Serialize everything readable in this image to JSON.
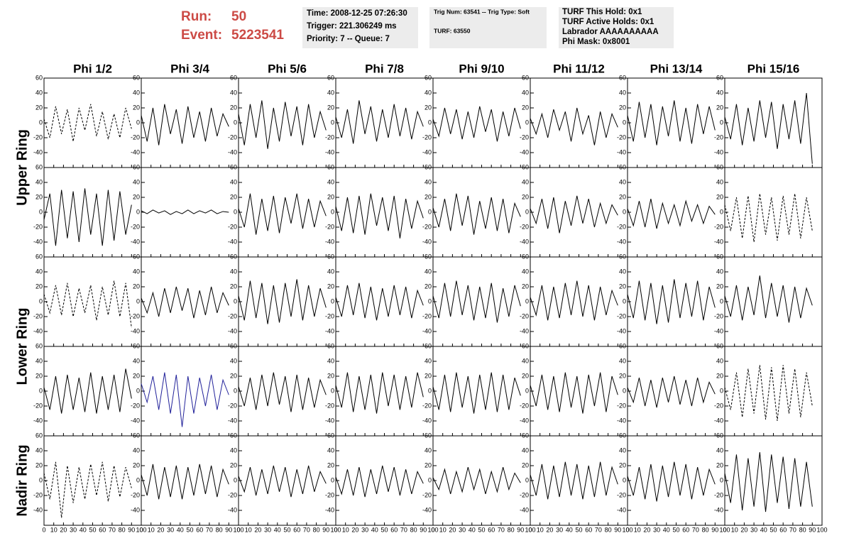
{
  "header": {
    "run_label": "Run:",
    "run": "50",
    "event_label": "Event:",
    "event": "5223541",
    "box1": [
      "Time: 2008-12-25 07:26:30",
      "Trigger: 221.306249 ms",
      "Priority: 7 -- Queue: 7"
    ],
    "box2": [
      "Trig Num: 63541 -- Trig Type: Soft",
      "TURF: 63550"
    ],
    "box3": [
      "TURF This Hold: 0x1",
      "TURF Active Holds: 0x1",
      "Labrador AAAAAAAAAA",
      "Phi Mask: 0x8001"
    ]
  },
  "chart_data": {
    "type": "waveform-grid",
    "columns": [
      "Phi 1/2",
      "Phi 3/4",
      "Phi 5/6",
      "Phi 7/8",
      "Phi 9/10",
      "Phi 11/12",
      "Phi 13/14",
      "Phi 15/16"
    ],
    "row_labels": [
      "Upper Ring",
      null,
      "Lower Ring",
      null,
      "Nadir Ring"
    ],
    "x": [
      0,
      6,
      12,
      18,
      24,
      30,
      36,
      42,
      48,
      54,
      60,
      66,
      72,
      78,
      84,
      90
    ],
    "xlim": [
      0,
      100
    ],
    "xticks": [
      0,
      10,
      20,
      30,
      40,
      50,
      60,
      70,
      80,
      90,
      100
    ],
    "ylim": [
      -60,
      60
    ],
    "yticks": [
      -40,
      -20,
      0,
      20,
      40,
      60
    ],
    "panels": [
      {
        "cells": [
          {
            "color": "#000000",
            "dashed": true,
            "values": [
              5,
              -20,
              22,
              -15,
              18,
              -25,
              20,
              -10,
              25,
              -18,
              15,
              -22,
              12,
              -20,
              20,
              -8
            ]
          },
          {
            "color": "#000000",
            "dashed": false,
            "values": [
              10,
              -25,
              20,
              -30,
              25,
              -15,
              18,
              -28,
              22,
              -20,
              15,
              -25,
              20,
              -18,
              12,
              -5
            ]
          },
          {
            "color": "#000000",
            "dashed": false,
            "values": [
              12,
              -30,
              25,
              -20,
              30,
              -35,
              20,
              -25,
              28,
              -18,
              22,
              -30,
              25,
              -20,
              15,
              -10
            ]
          },
          {
            "color": "#000000",
            "dashed": false,
            "values": [
              8,
              -20,
              18,
              -28,
              30,
              -15,
              22,
              -25,
              18,
              -20,
              25,
              -18,
              20,
              -22,
              15,
              -5
            ]
          },
          {
            "color": "#000000",
            "dashed": false,
            "values": [
              5,
              -18,
              20,
              -15,
              18,
              -22,
              15,
              -20,
              22,
              -12,
              18,
              -25,
              15,
              -18,
              20,
              -8
            ]
          },
          {
            "color": "#000000",
            "dashed": false,
            "values": [
              6,
              -15,
              12,
              -20,
              18,
              -10,
              15,
              -25,
              20,
              -15,
              10,
              -30,
              15,
              -20,
              12,
              -6
            ]
          },
          {
            "color": "#000000",
            "dashed": false,
            "values": [
              10,
              -25,
              28,
              -20,
              25,
              -30,
              22,
              -18,
              30,
              -25,
              20,
              -28,
              25,
              -15,
              22,
              -10
            ]
          },
          {
            "color": "#000000",
            "dashed": false,
            "values": [
              8,
              -22,
              25,
              -30,
              20,
              -25,
              30,
              -20,
              28,
              -35,
              25,
              -22,
              30,
              -28,
              40,
              -55
            ]
          }
        ]
      },
      {
        "cells": [
          {
            "color": "#000000",
            "dashed": false,
            "values": [
              -10,
              25,
              -45,
              30,
              -35,
              28,
              -40,
              32,
              -30,
              25,
              -45,
              30,
              -38,
              28,
              -30,
              10
            ]
          },
          {
            "color": "#000000",
            "dashed": false,
            "values": [
              2,
              -2,
              3,
              -1,
              2,
              -3,
              1,
              -2,
              3,
              -2,
              2,
              -1,
              3,
              -2,
              1,
              0
            ]
          },
          {
            "color": "#000000",
            "dashed": false,
            "values": [
              5,
              -20,
              25,
              -30,
              18,
              -25,
              22,
              -28,
              20,
              -15,
              25,
              -22,
              18,
              -20,
              15,
              -5
            ]
          },
          {
            "color": "#000000",
            "dashed": false,
            "values": [
              8,
              -25,
              20,
              -28,
              22,
              -30,
              25,
              -18,
              20,
              -25,
              22,
              -35,
              18,
              -22,
              15,
              -8
            ]
          },
          {
            "color": "#000000",
            "dashed": false,
            "values": [
              6,
              -20,
              18,
              -25,
              25,
              -18,
              22,
              -30,
              15,
              -22,
              20,
              -25,
              18,
              -28,
              12,
              -6
            ]
          },
          {
            "color": "#000000",
            "dashed": false,
            "values": [
              5,
              -15,
              18,
              -22,
              20,
              -28,
              15,
              -18,
              22,
              -15,
              18,
              -20,
              12,
              -15,
              10,
              -4
            ]
          },
          {
            "color": "#000000",
            "dashed": false,
            "values": [
              5,
              -18,
              15,
              -20,
              18,
              -22,
              12,
              -15,
              10,
              -18,
              15,
              -12,
              10,
              -15,
              8,
              -3
            ]
          },
          {
            "color": "#000000",
            "dashed": true,
            "values": [
              10,
              -25,
              20,
              -35,
              22,
              -40,
              25,
              -30,
              20,
              -38,
              22,
              -30,
              25,
              -35,
              20,
              -25
            ]
          }
        ]
      },
      {
        "cells": [
          {
            "color": "#000000",
            "dashed": true,
            "values": [
              10,
              -15,
              22,
              -18,
              25,
              -20,
              18,
              -15,
              22,
              -25,
              20,
              -18,
              28,
              -20,
              25,
              -35
            ]
          },
          {
            "color": "#000000",
            "dashed": false,
            "values": [
              5,
              -15,
              12,
              -20,
              18,
              -15,
              20,
              -12,
              18,
              -22,
              15,
              -18,
              20,
              -15,
              12,
              -5
            ]
          },
          {
            "color": "#000000",
            "dashed": false,
            "values": [
              8,
              -25,
              28,
              -22,
              25,
              -30,
              22,
              -28,
              25,
              -20,
              30,
              -25,
              22,
              -20,
              18,
              -8
            ]
          },
          {
            "color": "#000000",
            "dashed": false,
            "values": [
              6,
              -20,
              22,
              -18,
              25,
              -22,
              20,
              -25,
              18,
              -20,
              22,
              -18,
              20,
              -22,
              15,
              -5
            ]
          },
          {
            "color": "#000000",
            "dashed": false,
            "values": [
              8,
              -22,
              25,
              -20,
              28,
              -18,
              22,
              -25,
              20,
              -22,
              25,
              -28,
              18,
              -20,
              22,
              -6
            ]
          },
          {
            "color": "#000000",
            "dashed": false,
            "values": [
              6,
              -18,
              22,
              -25,
              20,
              -22,
              25,
              -18,
              28,
              -20,
              22,
              -25,
              20,
              -18,
              15,
              -5
            ]
          },
          {
            "color": "#000000",
            "dashed": false,
            "values": [
              10,
              -22,
              28,
              -25,
              25,
              -30,
              22,
              -28,
              30,
              -22,
              25,
              -20,
              28,
              -25,
              20,
              -8
            ]
          },
          {
            "color": "#000000",
            "dashed": false,
            "values": [
              8,
              -20,
              22,
              -25,
              20,
              -18,
              35,
              -22,
              25,
              -20,
              22,
              -28,
              20,
              -22,
              18,
              -5
            ]
          }
        ]
      },
      {
        "cells": [
          {
            "color": "#000000",
            "dashed": false,
            "values": [
              5,
              -25,
              20,
              -30,
              22,
              -25,
              18,
              -28,
              25,
              -30,
              20,
              -25,
              22,
              -28,
              30,
              -10
            ]
          },
          {
            "color": "#22229a",
            "dashed": false,
            "values": [
              10,
              -15,
              20,
              -25,
              25,
              -30,
              22,
              -48,
              20,
              -30,
              18,
              -20,
              22,
              -25,
              15,
              -5
            ]
          },
          {
            "color": "#000000",
            "dashed": false,
            "values": [
              6,
              -20,
              18,
              -25,
              22,
              -20,
              25,
              -18,
              20,
              -28,
              22,
              -25,
              18,
              -22,
              15,
              -5
            ]
          },
          {
            "color": "#000000",
            "dashed": false,
            "values": [
              8,
              -22,
              25,
              -28,
              20,
              -25,
              22,
              -30,
              25,
              -20,
              22,
              -25,
              20,
              -22,
              25,
              -8
            ]
          },
          {
            "color": "#000000",
            "dashed": false,
            "values": [
              6,
              -25,
              22,
              -28,
              25,
              -22,
              20,
              -30,
              22,
              -25,
              25,
              -28,
              22,
              -25,
              18,
              -6
            ]
          },
          {
            "color": "#000000",
            "dashed": false,
            "values": [
              8,
              -20,
              22,
              -25,
              20,
              -28,
              25,
              -22,
              20,
              -30,
              22,
              -20,
              25,
              -28,
              20,
              -5
            ]
          },
          {
            "color": "#000000",
            "dashed": false,
            "values": [
              5,
              -15,
              18,
              -20,
              15,
              -22,
              18,
              -15,
              20,
              -18,
              15,
              -20,
              18,
              -15,
              12,
              -4
            ]
          },
          {
            "color": "#000000",
            "dashed": true,
            "values": [
              5,
              -25,
              25,
              -35,
              30,
              -30,
              35,
              -38,
              32,
              -40,
              35,
              -30,
              30,
              -35,
              25,
              -20
            ]
          }
        ]
      },
      {
        "cells": [
          {
            "color": "#000000",
            "dashed": true,
            "values": [
              10,
              -25,
              25,
              -50,
              20,
              -30,
              18,
              -25,
              22,
              -20,
              25,
              -28,
              20,
              -22,
              18,
              -10
            ]
          },
          {
            "color": "#000000",
            "dashed": false,
            "values": [
              8,
              -20,
              22,
              -25,
              18,
              -22,
              20,
              -25,
              18,
              -20,
              22,
              -18,
              20,
              -22,
              15,
              -5
            ]
          },
          {
            "color": "#000000",
            "dashed": false,
            "values": [
              6,
              -15,
              18,
              -20,
              15,
              -18,
              20,
              -15,
              18,
              -22,
              15,
              -18,
              20,
              -15,
              12,
              -4
            ]
          },
          {
            "color": "#000000",
            "dashed": false,
            "values": [
              5,
              -18,
              15,
              -20,
              18,
              -22,
              15,
              -18,
              20,
              -15,
              18,
              -20,
              15,
              -18,
              12,
              -4
            ]
          },
          {
            "color": "#000000",
            "dashed": false,
            "values": [
              4,
              -12,
              15,
              -18,
              12,
              -15,
              18,
              -12,
              15,
              -18,
              12,
              -15,
              18,
              -12,
              10,
              -3
            ]
          },
          {
            "color": "#000000",
            "dashed": false,
            "values": [
              8,
              -20,
              22,
              -25,
              20,
              -22,
              25,
              -20,
              22,
              -25,
              20,
              -22,
              25,
              -20,
              18,
              -5
            ]
          },
          {
            "color": "#000000",
            "dashed": false,
            "values": [
              6,
              -20,
              18,
              -25,
              22,
              -28,
              20,
              -22,
              25,
              -20,
              22,
              -25,
              18,
              -20,
              15,
              -5
            ]
          },
          {
            "color": "#000000",
            "dashed": false,
            "values": [
              10,
              -30,
              35,
              -40,
              30,
              -35,
              38,
              -42,
              35,
              -30,
              32,
              -38,
              30,
              -35,
              25,
              -35
            ]
          }
        ]
      }
    ]
  }
}
